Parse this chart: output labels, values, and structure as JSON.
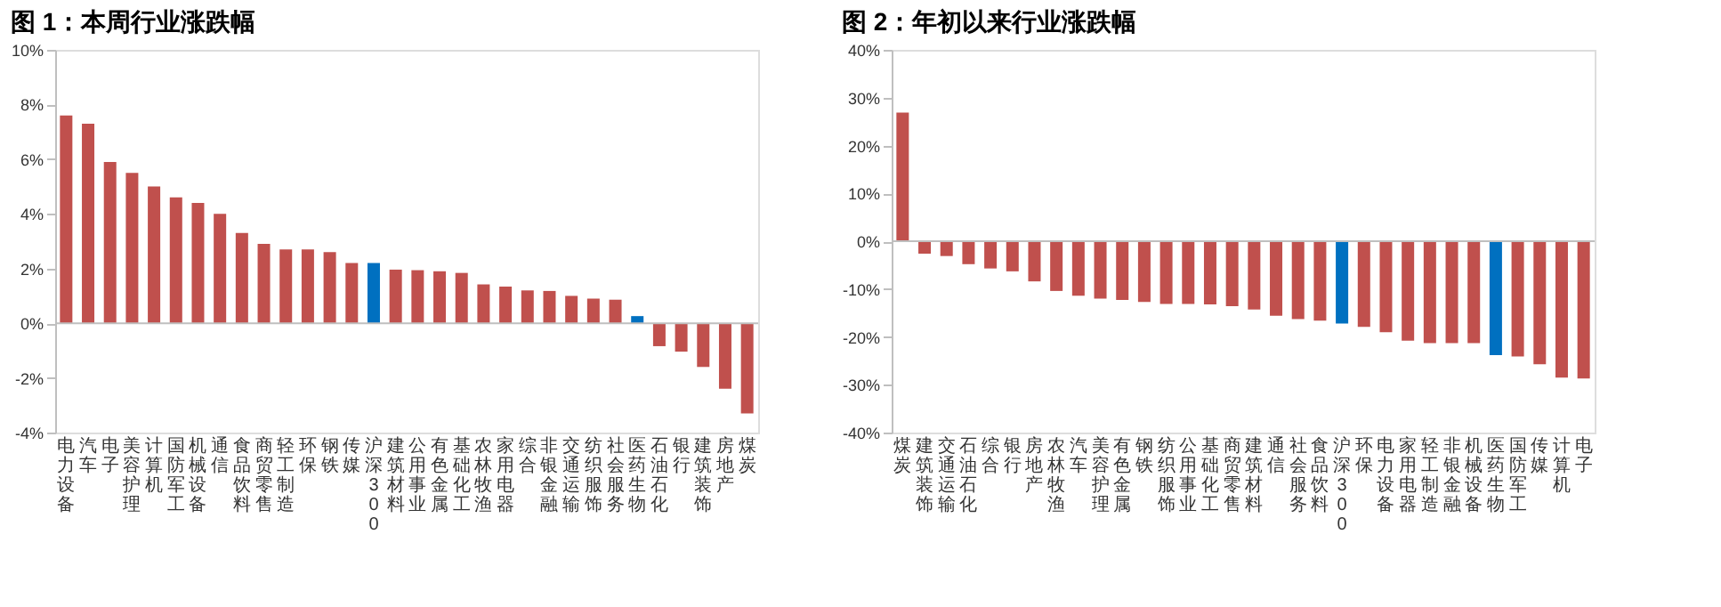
{
  "chart_data": [
    {
      "type": "bar",
      "title": "图 1：本周行业涨跌幅",
      "categories": [
        "电力设备",
        "汽车",
        "电子",
        "美容护理",
        "计算机",
        "国防军工",
        "机械设备",
        "通信",
        "食品饮料",
        "商贸零售",
        "轻工制造",
        "环保",
        "钢铁",
        "传媒",
        "沪深300",
        "建筑材料",
        "公用事业",
        "有色金属",
        "基础化工",
        "农林牧渔",
        "家用电器",
        "综合",
        "非银金融",
        "交通运输",
        "纺织服饰",
        "社会服务",
        "医药生物",
        "石油石化",
        "银行",
        "建筑装饰",
        "房地产",
        "煤炭"
      ],
      "values": [
        7.6,
        7.3,
        5.9,
        5.5,
        5.0,
        4.6,
        4.4,
        4.0,
        3.3,
        2.9,
        2.7,
        2.7,
        2.6,
        2.2,
        2.2,
        1.96,
        1.94,
        1.9,
        1.84,
        1.42,
        1.34,
        1.2,
        1.18,
        1.0,
        0.9,
        0.86,
        0.26,
        -0.84,
        -1.04,
        -1.6,
        -2.4,
        -3.3
      ],
      "colors": [
        "#c0504d",
        "#c0504d",
        "#c0504d",
        "#c0504d",
        "#c0504d",
        "#c0504d",
        "#c0504d",
        "#c0504d",
        "#c0504d",
        "#c0504d",
        "#c0504d",
        "#c0504d",
        "#c0504d",
        "#c0504d",
        "#0070c0",
        "#c0504d",
        "#c0504d",
        "#c0504d",
        "#c0504d",
        "#c0504d",
        "#c0504d",
        "#c0504d",
        "#c0504d",
        "#c0504d",
        "#c0504d",
        "#c0504d",
        "#0070c0",
        "#c0504d",
        "#c0504d",
        "#c0504d",
        "#c0504d",
        "#c0504d"
      ],
      "ylim": [
        -4,
        10
      ],
      "yticks": [
        {
          "value": -4,
          "label": "-4%"
        },
        {
          "value": -2,
          "label": "-2%"
        },
        {
          "value": 0,
          "label": "0%"
        },
        {
          "value": 2,
          "label": "2%"
        },
        {
          "value": 4,
          "label": "4%"
        },
        {
          "value": 6,
          "label": "6%"
        },
        {
          "value": 8,
          "label": "8%"
        },
        {
          "value": 10,
          "label": "10%"
        }
      ],
      "ref_lines": [
        {
          "axis": "y",
          "value": 0,
          "color": "#bfbfbf"
        }
      ]
    },
    {
      "type": "bar",
      "title": "图 2：年初以来行业涨跌幅",
      "categories": [
        "煤炭",
        "建筑装饰",
        "交通运输",
        "石油石化",
        "综合",
        "银行",
        "房地产",
        "农林牧渔",
        "汽车",
        "美容护理",
        "有色金属",
        "钢铁",
        "纺织服饰",
        "公用事业",
        "基础化工",
        "商贸零售",
        "建筑材料",
        "通信",
        "社会服务",
        "食品饮料",
        "沪深300",
        "环保",
        "电力设备",
        "家用电器",
        "轻工制造",
        "非银金融",
        "机械设备",
        "医药生物",
        "国防军工",
        "传媒",
        "计算机",
        "电子"
      ],
      "values": [
        26.9,
        -2.6,
        -3.1,
        -4.8,
        -5.7,
        -6.3,
        -8.4,
        -10.4,
        -11.4,
        -12.0,
        -12.3,
        -12.7,
        -13.1,
        -13.1,
        -13.2,
        -13.6,
        -14.3,
        -15.6,
        -16.3,
        -16.6,
        -17.2,
        -17.9,
        -19.0,
        -20.8,
        -21.3,
        -21.3,
        -21.3,
        -23.8,
        -24.1,
        -25.7,
        -28.5,
        -28.7
      ],
      "colors": [
        "#c0504d",
        "#c0504d",
        "#c0504d",
        "#c0504d",
        "#c0504d",
        "#c0504d",
        "#c0504d",
        "#c0504d",
        "#c0504d",
        "#c0504d",
        "#c0504d",
        "#c0504d",
        "#c0504d",
        "#c0504d",
        "#c0504d",
        "#c0504d",
        "#c0504d",
        "#c0504d",
        "#c0504d",
        "#c0504d",
        "#0070c0",
        "#c0504d",
        "#c0504d",
        "#c0504d",
        "#c0504d",
        "#c0504d",
        "#c0504d",
        "#0070c0",
        "#c0504d",
        "#c0504d",
        "#c0504d",
        "#c0504d"
      ],
      "ylim": [
        -40,
        40
      ],
      "yticks": [
        {
          "value": -40,
          "label": "-40%"
        },
        {
          "value": -30,
          "label": "-30%"
        },
        {
          "value": -20,
          "label": "-20%"
        },
        {
          "value": -10,
          "label": "-10%"
        },
        {
          "value": 0,
          "label": "0%"
        },
        {
          "value": 10,
          "label": "10%"
        },
        {
          "value": 20,
          "label": "20%"
        },
        {
          "value": 30,
          "label": "30%"
        },
        {
          "value": 40,
          "label": "40%"
        }
      ],
      "ref_lines": [
        {
          "axis": "y",
          "value": 0,
          "color": "#bfbfbf"
        }
      ]
    }
  ]
}
